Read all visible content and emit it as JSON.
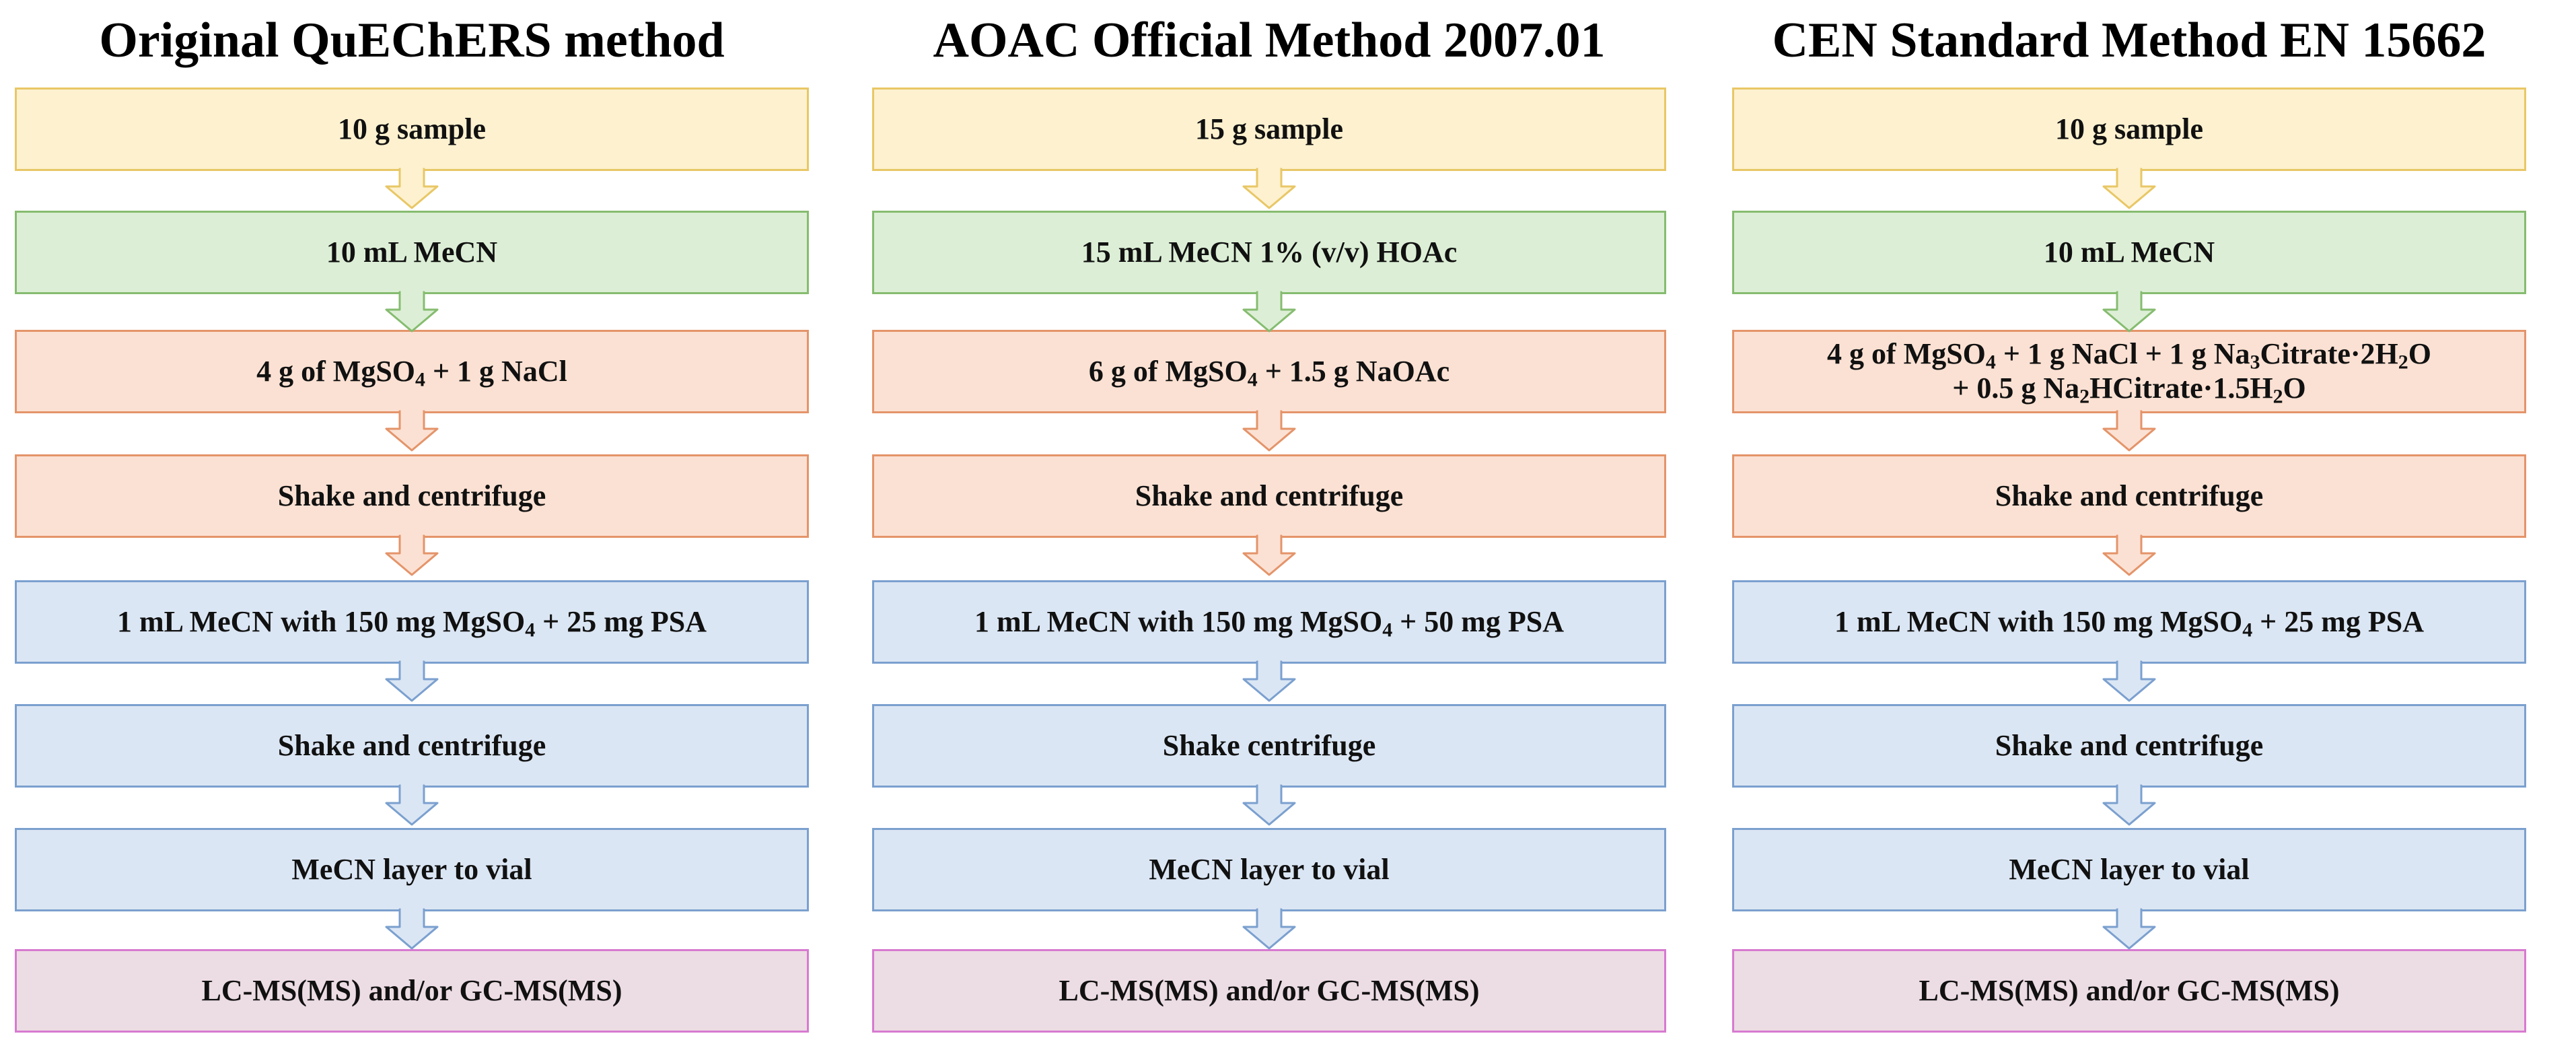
{
  "colors": {
    "yellow_fill": "#fdf1cf",
    "yellow_stroke": "#e8c766",
    "green_fill": "#dcefd6",
    "green_stroke": "#86bc70",
    "orange_fill": "#fbe1d3",
    "orange_stroke": "#e4946a",
    "blue_fill": "#dbe6f4",
    "blue_stroke": "#7ba0cf",
    "pink_fill": "#ecdce3",
    "pink_stroke": "#d77ad0"
  },
  "columns": [
    {
      "title": "Original QuEChERS method",
      "steps": [
        {
          "label": "10 g sample"
        },
        {
          "label": "10 mL MeCN"
        },
        {
          "label": "4 g of MgSO",
          "sub": "4",
          "label_after": " + 1 g NaCl"
        },
        {
          "label": "Shake and centrifuge"
        },
        {
          "label": "1 mL MeCN with 150 mg MgSO",
          "sub": "4",
          "label_after": " + 25 mg PSA"
        },
        {
          "label": "Shake and centrifuge"
        },
        {
          "label": "MeCN layer to vial"
        },
        {
          "label": "LC-MS(MS) and/or GC-MS(MS)"
        }
      ]
    },
    {
      "title": "AOAC Official Method 2007.01",
      "steps": [
        {
          "label": "15 g sample"
        },
        {
          "label": "15 mL MeCN 1% (v/v) HOAc"
        },
        {
          "label": "6 g of MgSO",
          "sub": "4",
          "label_after": " + 1.5 g NaOAc"
        },
        {
          "label": "Shake and centrifuge"
        },
        {
          "label": "1 mL MeCN with 150 mg MgSO",
          "sub": "4",
          "label_after": " + 50 mg PSA"
        },
        {
          "label": "Shake centrifuge"
        },
        {
          "label": "MeCN layer to vial"
        },
        {
          "label": "LC-MS(MS) and/or GC-MS(MS)"
        }
      ]
    },
    {
      "title": "CEN Standard Method EN 15662",
      "steps": [
        {
          "label": "10 g sample"
        },
        {
          "label": "10 mL MeCN"
        },
        {
          "line1": {
            "a": "4 g of MgSO",
            "s1": "4",
            "b": " + 1 g NaCl + 1 g Na",
            "s2": "3",
            "c": "Citrate·2H",
            "s3": "2",
            "d": "O"
          },
          "line2": {
            "a": "+ 0.5 g Na",
            "s1": "2",
            "b": "HCitrate·1.5H",
            "s2": "2",
            "c": "O"
          }
        },
        {
          "label": "Shake and centrifuge"
        },
        {
          "label": "1 mL MeCN with 150 mg MgSO",
          "sub": "4",
          "label_after": " + 25 mg PSA"
        },
        {
          "label": "Shake and centrifuge"
        },
        {
          "label": "MeCN layer to vial"
        },
        {
          "label": "LC-MS(MS) and/or GC-MS(MS)"
        }
      ]
    }
  ]
}
